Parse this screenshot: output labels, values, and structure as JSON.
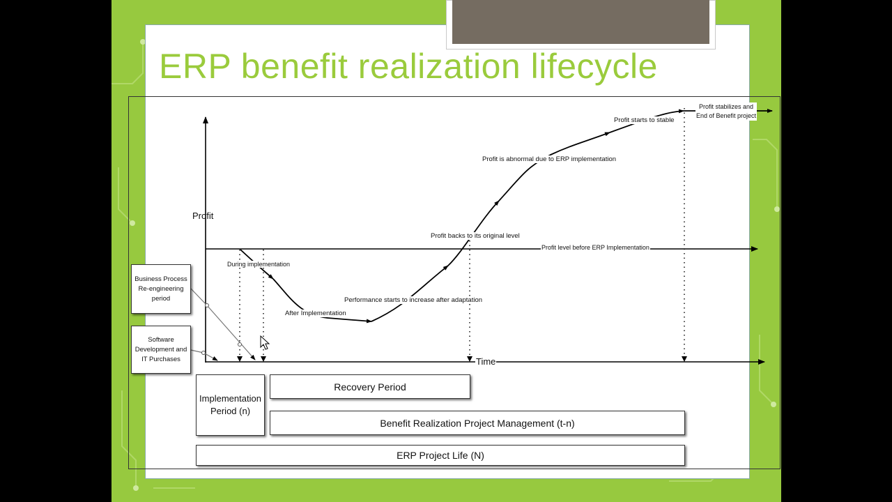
{
  "slide": {
    "title": "ERP benefit realization lifecycle",
    "title_color": "#9acb3c",
    "accent_color": "#97c93f"
  },
  "diagram": {
    "axes": {
      "y_label": "Profit",
      "x_label": "Time"
    },
    "annotations": {
      "profit_level": "Profit level before ERP Implementation",
      "during_impl": "During implementation",
      "after_impl": "After Implementation",
      "perf_increase": "Performance starts to increase after adaptation",
      "profit_back": "Profit backs to its original level",
      "profit_abnormal": "Profit is abnormal due to ERP implementation",
      "profit_stable": "Profit starts to stable",
      "profit_stabilizes_line1": "Profit stabilizes  and",
      "profit_stabilizes_line2": "End of Benefit project"
    },
    "side_boxes": {
      "bpr": [
        "Business Process",
        "Re-engineering",
        "period"
      ],
      "software": [
        "Software",
        "Development and",
        "IT Purchases"
      ]
    },
    "periods": {
      "implementation": [
        "Implementation",
        "Period (n)"
      ],
      "recovery": "Recovery Period",
      "benefit": "Benefit Realization Project Management (t-n)",
      "project_life": "ERP Project Life (N)"
    }
  }
}
